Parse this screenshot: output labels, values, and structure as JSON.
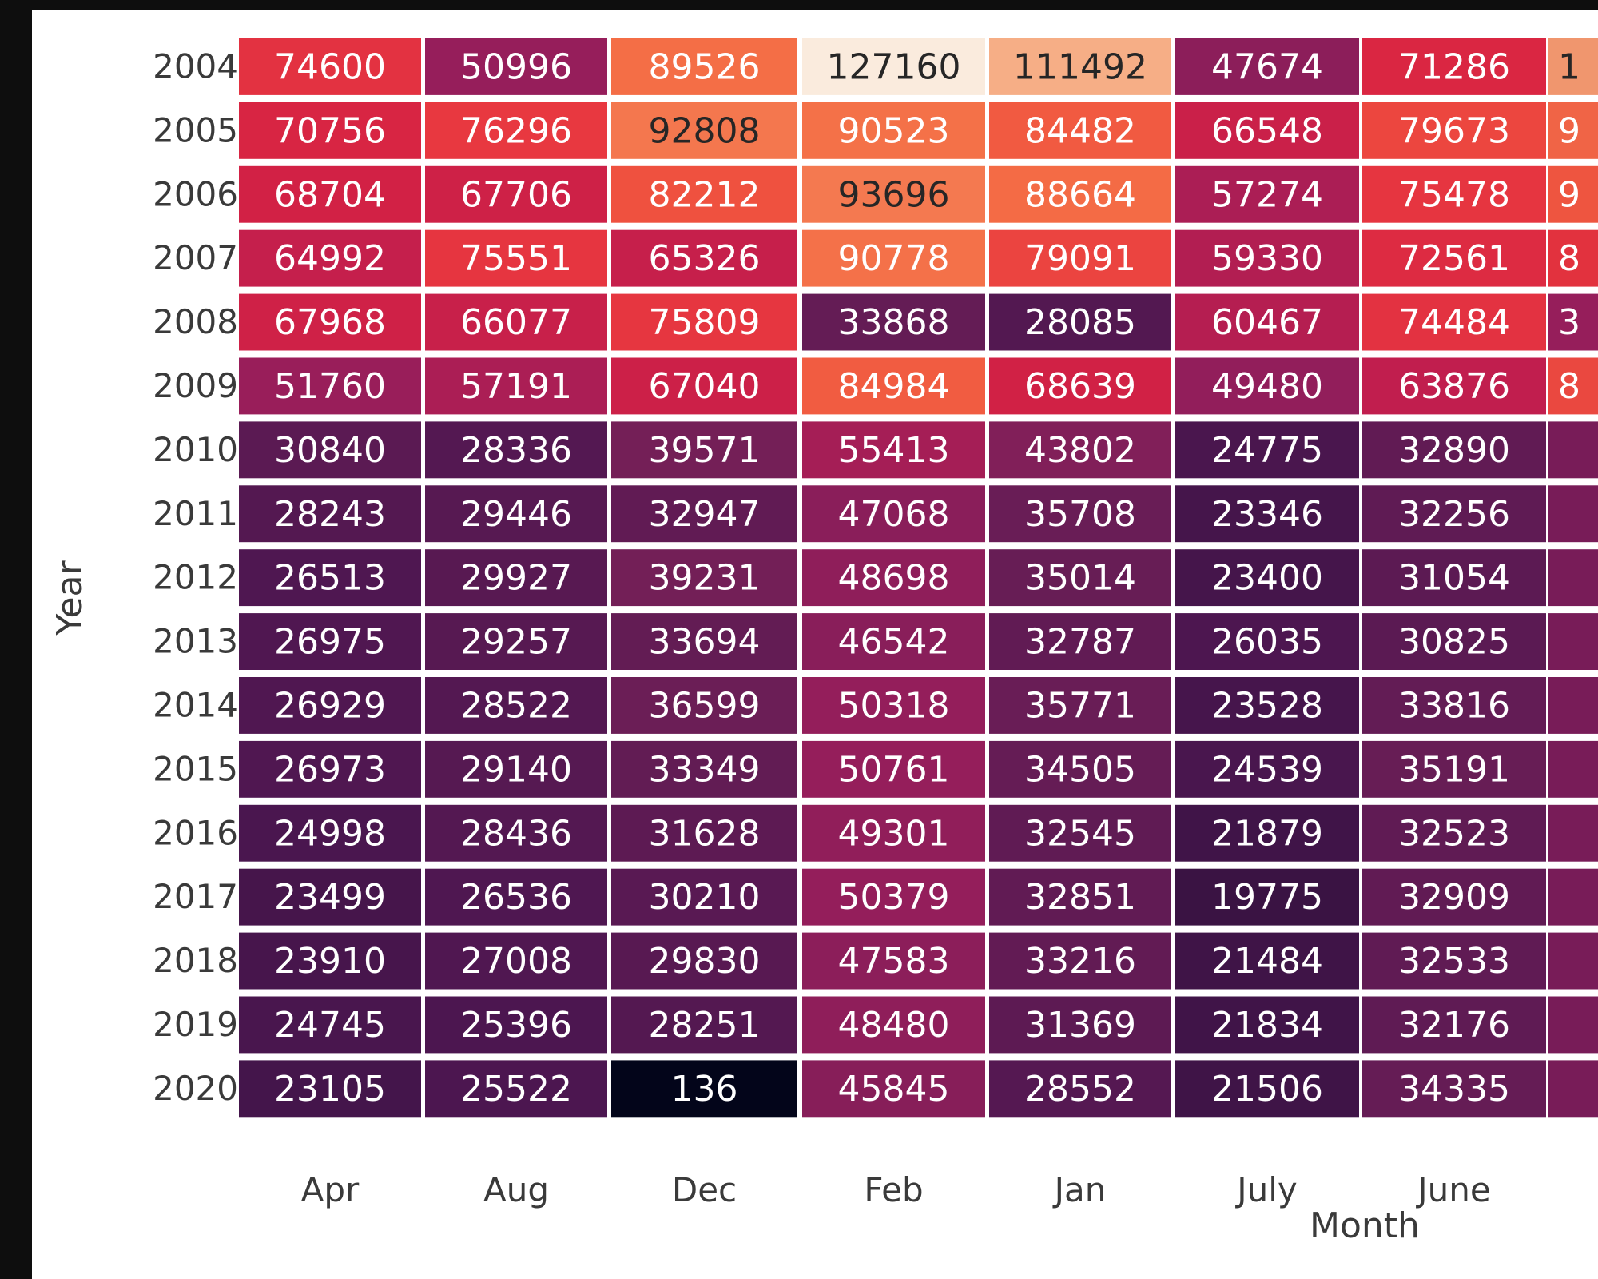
{
  "chart_data": {
    "type": "heatmap",
    "title": "",
    "xlabel": "Month",
    "ylabel": "Year",
    "x": [
      "Apr",
      "Aug",
      "Dec",
      "Feb",
      "Jan",
      "July",
      "June"
    ],
    "y": [
      "2004",
      "2005",
      "2006",
      "2007",
      "2008",
      "2009",
      "2010",
      "2011",
      "2012",
      "2013",
      "2014",
      "2015",
      "2016",
      "2017",
      "2018",
      "2019",
      "2020"
    ],
    "values": [
      [
        74600,
        50996,
        89526,
        127160,
        111492,
        47674,
        71286
      ],
      [
        70756,
        76296,
        92808,
        90523,
        84482,
        66548,
        79673
      ],
      [
        68704,
        67706,
        82212,
        93696,
        88664,
        57274,
        75478
      ],
      [
        64992,
        75551,
        65326,
        90778,
        79091,
        59330,
        72561
      ],
      [
        67968,
        66077,
        75809,
        33868,
        28085,
        60467,
        74484
      ],
      [
        51760,
        57191,
        67040,
        84984,
        68639,
        49480,
        63876
      ],
      [
        30840,
        28336,
        39571,
        55413,
        43802,
        24775,
        32890
      ],
      [
        28243,
        29446,
        32947,
        47068,
        35708,
        23346,
        32256
      ],
      [
        26513,
        29927,
        39231,
        48698,
        35014,
        23400,
        31054
      ],
      [
        26975,
        29257,
        33694,
        46542,
        32787,
        26035,
        30825
      ],
      [
        26929,
        28522,
        36599,
        50318,
        35771,
        23528,
        33816
      ],
      [
        26973,
        29140,
        33349,
        50761,
        34505,
        24539,
        35191
      ],
      [
        24998,
        28436,
        31628,
        49301,
        32545,
        21879,
        32523
      ],
      [
        23499,
        26536,
        30210,
        50379,
        32851,
        19775,
        32909
      ],
      [
        23910,
        27008,
        29830,
        47583,
        33216,
        21484,
        32533
      ],
      [
        24745,
        25396,
        28251,
        48480,
        31369,
        21834,
        32176
      ],
      [
        23105,
        25522,
        136,
        45845,
        28552,
        21506,
        34335
      ]
    ],
    "partial_column_labels": [
      "1",
      "9",
      "9",
      "8",
      "3",
      "8"
    ],
    "colormap": "rocket",
    "vmin": 136,
    "vmax": 127160,
    "annotated": true,
    "grid": false
  }
}
